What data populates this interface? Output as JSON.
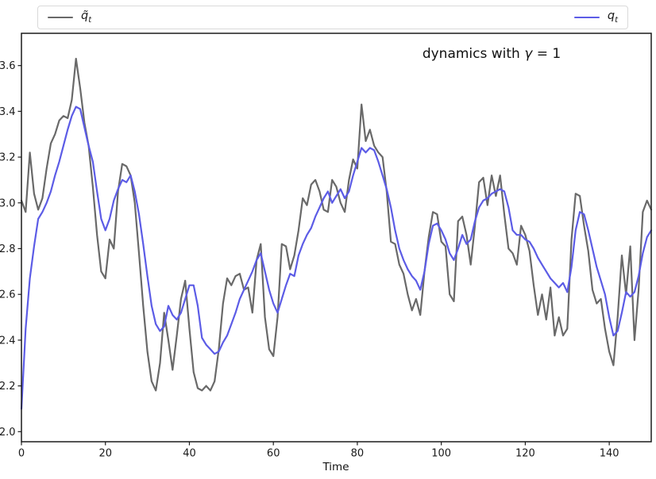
{
  "figure": {
    "xlabel": "Time",
    "title_annotation": {
      "prefix": "dynamics with ",
      "gamma": "γ",
      "suffix": " = 1"
    },
    "legend": [
      {
        "name": "q-tilde-series",
        "base": "q̃",
        "sub": "t",
        "color": "#696969"
      },
      {
        "name": "q-series",
        "base": "q",
        "sub": "t",
        "color": "#5c5ce6"
      }
    ]
  },
  "chart_data": {
    "type": "line",
    "title": "dynamics with γ = 1",
    "xlabel": "Time",
    "ylabel": "",
    "xlim": [
      0,
      150
    ],
    "ylim": [
      1.956,
      3.741
    ],
    "x_ticks": [
      0,
      20,
      40,
      60,
      80,
      100,
      120,
      140
    ],
    "y_ticks": [
      2.0,
      2.2,
      2.4,
      2.6,
      2.8,
      3.0,
      3.2,
      3.4,
      3.6
    ],
    "y_tick_labels": [
      "2.0",
      "2.2",
      "2.4",
      "2.6",
      "2.8",
      "3.0",
      "3.2",
      "3.4",
      "3.6"
    ],
    "grid": false,
    "legend_position": "top strip above axes, entries left and right",
    "x": [
      0,
      1,
      2,
      3,
      4,
      5,
      6,
      7,
      8,
      9,
      10,
      11,
      12,
      13,
      14,
      15,
      16,
      17,
      18,
      19,
      20,
      21,
      22,
      23,
      24,
      25,
      26,
      27,
      28,
      29,
      30,
      31,
      32,
      33,
      34,
      35,
      36,
      37,
      38,
      39,
      40,
      41,
      42,
      43,
      44,
      45,
      46,
      47,
      48,
      49,
      50,
      51,
      52,
      53,
      54,
      55,
      56,
      57,
      58,
      59,
      60,
      61,
      62,
      63,
      64,
      65,
      66,
      67,
      68,
      69,
      70,
      71,
      72,
      73,
      74,
      75,
      76,
      77,
      78,
      79,
      80,
      81,
      82,
      83,
      84,
      85,
      86,
      87,
      88,
      89,
      90,
      91,
      92,
      93,
      94,
      95,
      96,
      97,
      98,
      99,
      100,
      101,
      102,
      103,
      104,
      105,
      106,
      107,
      108,
      109,
      110,
      111,
      112,
      113,
      114,
      115,
      116,
      117,
      118,
      119,
      120,
      121,
      122,
      123,
      124,
      125,
      126,
      127,
      128,
      129,
      130,
      131,
      132,
      133,
      134,
      135,
      136,
      137,
      138,
      139,
      140,
      141,
      142,
      143,
      144,
      145,
      146,
      147,
      148,
      149,
      150
    ],
    "series": [
      {
        "name": "q̃_t",
        "color": "#696969",
        "values": [
          3.01,
          2.96,
          3.22,
          3.04,
          2.97,
          3.02,
          3.15,
          3.26,
          3.3,
          3.36,
          3.38,
          3.37,
          3.45,
          3.63,
          3.5,
          3.35,
          3.25,
          3.07,
          2.86,
          2.7,
          2.67,
          2.84,
          2.8,
          3.05,
          3.17,
          3.16,
          3.12,
          3.0,
          2.78,
          2.55,
          2.35,
          2.22,
          2.18,
          2.3,
          2.52,
          2.4,
          2.27,
          2.42,
          2.58,
          2.66,
          2.45,
          2.26,
          2.19,
          2.18,
          2.2,
          2.18,
          2.22,
          2.36,
          2.56,
          2.67,
          2.64,
          2.68,
          2.69,
          2.62,
          2.63,
          2.52,
          2.75,
          2.82,
          2.5,
          2.36,
          2.33,
          2.5,
          2.82,
          2.81,
          2.71,
          2.77,
          2.88,
          3.02,
          2.99,
          3.08,
          3.1,
          3.05,
          2.97,
          2.96,
          3.1,
          3.07,
          3.0,
          2.96,
          3.1,
          3.19,
          3.15,
          3.43,
          3.27,
          3.32,
          3.25,
          3.22,
          3.2,
          3.05,
          2.83,
          2.82,
          2.73,
          2.69,
          2.6,
          2.53,
          2.58,
          2.51,
          2.7,
          2.85,
          2.96,
          2.95,
          2.83,
          2.81,
          2.6,
          2.57,
          2.92,
          2.94,
          2.86,
          2.73,
          2.9,
          3.09,
          3.11,
          2.99,
          3.12,
          3.03,
          3.12,
          2.95,
          2.8,
          2.78,
          2.73,
          2.9,
          2.86,
          2.79,
          2.64,
          2.51,
          2.6,
          2.49,
          2.63,
          2.42,
          2.5,
          2.42,
          2.45,
          2.84,
          3.04,
          3.03,
          2.9,
          2.79,
          2.62,
          2.56,
          2.58,
          2.45,
          2.35,
          2.29,
          2.5,
          2.77,
          2.6,
          2.81,
          2.4,
          2.62,
          2.96,
          3.01,
          2.97
        ]
      },
      {
        "name": "q_t",
        "color": "#5c5ce6",
        "values": [
          2.1,
          2.45,
          2.67,
          2.81,
          2.93,
          2.96,
          3.0,
          3.05,
          3.12,
          3.18,
          3.25,
          3.32,
          3.38,
          3.42,
          3.41,
          3.33,
          3.25,
          3.18,
          3.05,
          2.93,
          2.88,
          2.93,
          3.01,
          3.06,
          3.1,
          3.09,
          3.12,
          3.05,
          2.95,
          2.82,
          2.68,
          2.55,
          2.47,
          2.44,
          2.46,
          2.55,
          2.51,
          2.49,
          2.52,
          2.58,
          2.64,
          2.64,
          2.55,
          2.41,
          2.38,
          2.36,
          2.34,
          2.35,
          2.39,
          2.42,
          2.47,
          2.52,
          2.58,
          2.62,
          2.66,
          2.7,
          2.75,
          2.78,
          2.7,
          2.62,
          2.56,
          2.52,
          2.58,
          2.64,
          2.69,
          2.68,
          2.77,
          2.82,
          2.86,
          2.89,
          2.94,
          2.98,
          3.02,
          3.05,
          3.0,
          3.03,
          3.06,
          3.02,
          3.05,
          3.12,
          3.18,
          3.24,
          3.22,
          3.24,
          3.23,
          3.18,
          3.12,
          3.06,
          2.98,
          2.88,
          2.8,
          2.75,
          2.71,
          2.68,
          2.66,
          2.62,
          2.7,
          2.82,
          2.9,
          2.91,
          2.88,
          2.84,
          2.78,
          2.75,
          2.8,
          2.86,
          2.82,
          2.84,
          2.92,
          2.98,
          3.01,
          3.02,
          3.04,
          3.05,
          3.06,
          3.05,
          2.98,
          2.88,
          2.86,
          2.86,
          2.84,
          2.83,
          2.8,
          2.76,
          2.73,
          2.7,
          2.67,
          2.65,
          2.63,
          2.65,
          2.61,
          2.72,
          2.88,
          2.96,
          2.95,
          2.88,
          2.8,
          2.72,
          2.66,
          2.6,
          2.5,
          2.42,
          2.44,
          2.52,
          2.61,
          2.59,
          2.61,
          2.68,
          2.78,
          2.85,
          2.88
        ]
      }
    ]
  }
}
